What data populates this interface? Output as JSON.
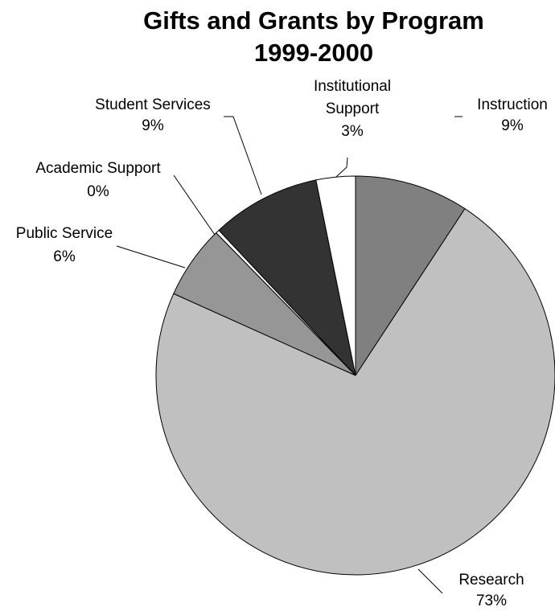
{
  "chart_data": {
    "type": "pie",
    "title": [
      "Gifts and Grants by Program",
      "1999-2000"
    ],
    "slices": [
      {
        "label": "Instruction",
        "percent_label": "9%",
        "value": 9.3,
        "color": "#808080"
      },
      {
        "label": "Research",
        "percent_label": "73%",
        "value": 73.0,
        "color": "#c0c0c0"
      },
      {
        "label": "Public Service",
        "percent_label": "6%",
        "value": 6.0,
        "color": "#969696"
      },
      {
        "label": "Academic Support",
        "percent_label": "0%",
        "value": 0.3,
        "color": "#ffffff"
      },
      {
        "label": "Student Services",
        "percent_label": "9%",
        "value": 8.9,
        "color": "#333333"
      },
      {
        "label": "Institutional Support",
        "percent_label": "3%",
        "value": 3.2,
        "color": "#ffffff"
      }
    ]
  }
}
